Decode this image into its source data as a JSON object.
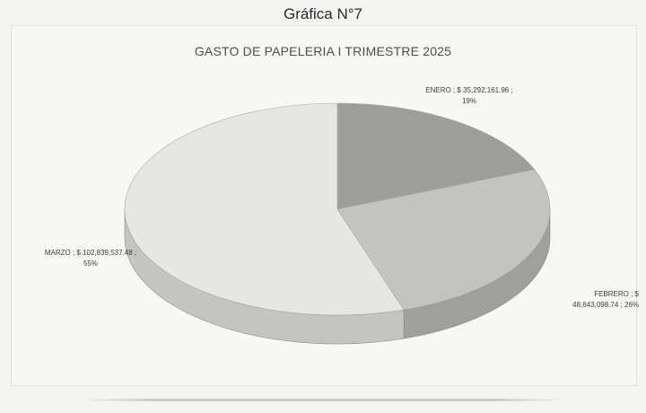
{
  "figure_title": "Gráfica N°7",
  "chart_data": {
    "type": "pie",
    "title": "GASTO DE PAPELERIA I TRIMESTRE 2025",
    "slices": [
      {
        "key": "enero",
        "label": "ENERO",
        "value": 35292161.96,
        "value_text": "$ 35,292,161.96",
        "percent": 19,
        "percent_text": "19%",
        "color": "#9d9d9b",
        "side_color": "#7c7c7a"
      },
      {
        "key": "febrero",
        "label": "FEBRERO",
        "value": 48643098.74,
        "value_text": "$ 48,643,098.74",
        "percent": 26,
        "percent_text": "26%",
        "color": "#c3c3c1",
        "side_color": "#9f9f9d"
      },
      {
        "key": "marzo",
        "label": "MARZO",
        "value": 102839537.48,
        "value_text": "$ 102,839,537.48",
        "percent": 55,
        "percent_text": "55%",
        "color": "#e6e6e4",
        "side_color": "#c4c4c2"
      }
    ],
    "style": "3d"
  },
  "labels": {
    "enero_line1": "ENERO ; $ 35,292,161.96 ;",
    "enero_line2": "19%",
    "febrero_line1": "FEBRERO ; $",
    "febrero_line2": "48,643,098.74 ; 26%",
    "marzo_line1": "MARZO ; $ 102,839,537.48 ;",
    "marzo_line2": "55%"
  }
}
